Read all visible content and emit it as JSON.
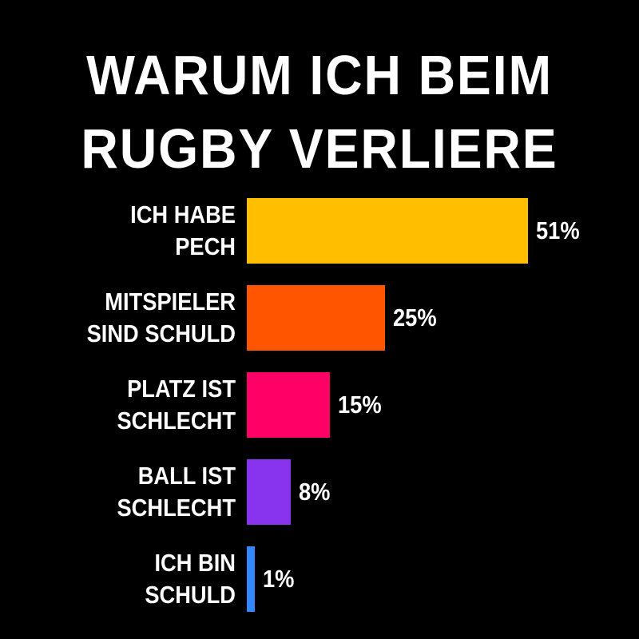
{
  "chart_data": {
    "type": "bar",
    "orientation": "horizontal",
    "title": "WARUM ICH BEIM\nRUGBY VERLIERE",
    "categories": [
      "ICH HABE\nPECH",
      "MITSPIELER\nSIND SCHULD",
      "PLATZ IST\nSCHLECHT",
      "BALL IST\nSCHLECHT",
      "ICH BIN\nSCHULD"
    ],
    "values": [
      51,
      25,
      15,
      8,
      1
    ],
    "value_labels": [
      "51%",
      "25%",
      "15%",
      "8%",
      "1%"
    ],
    "colors": [
      "#ffbf00",
      "#ff5500",
      "#ff0066",
      "#8833ee",
      "#3388ff"
    ]
  }
}
